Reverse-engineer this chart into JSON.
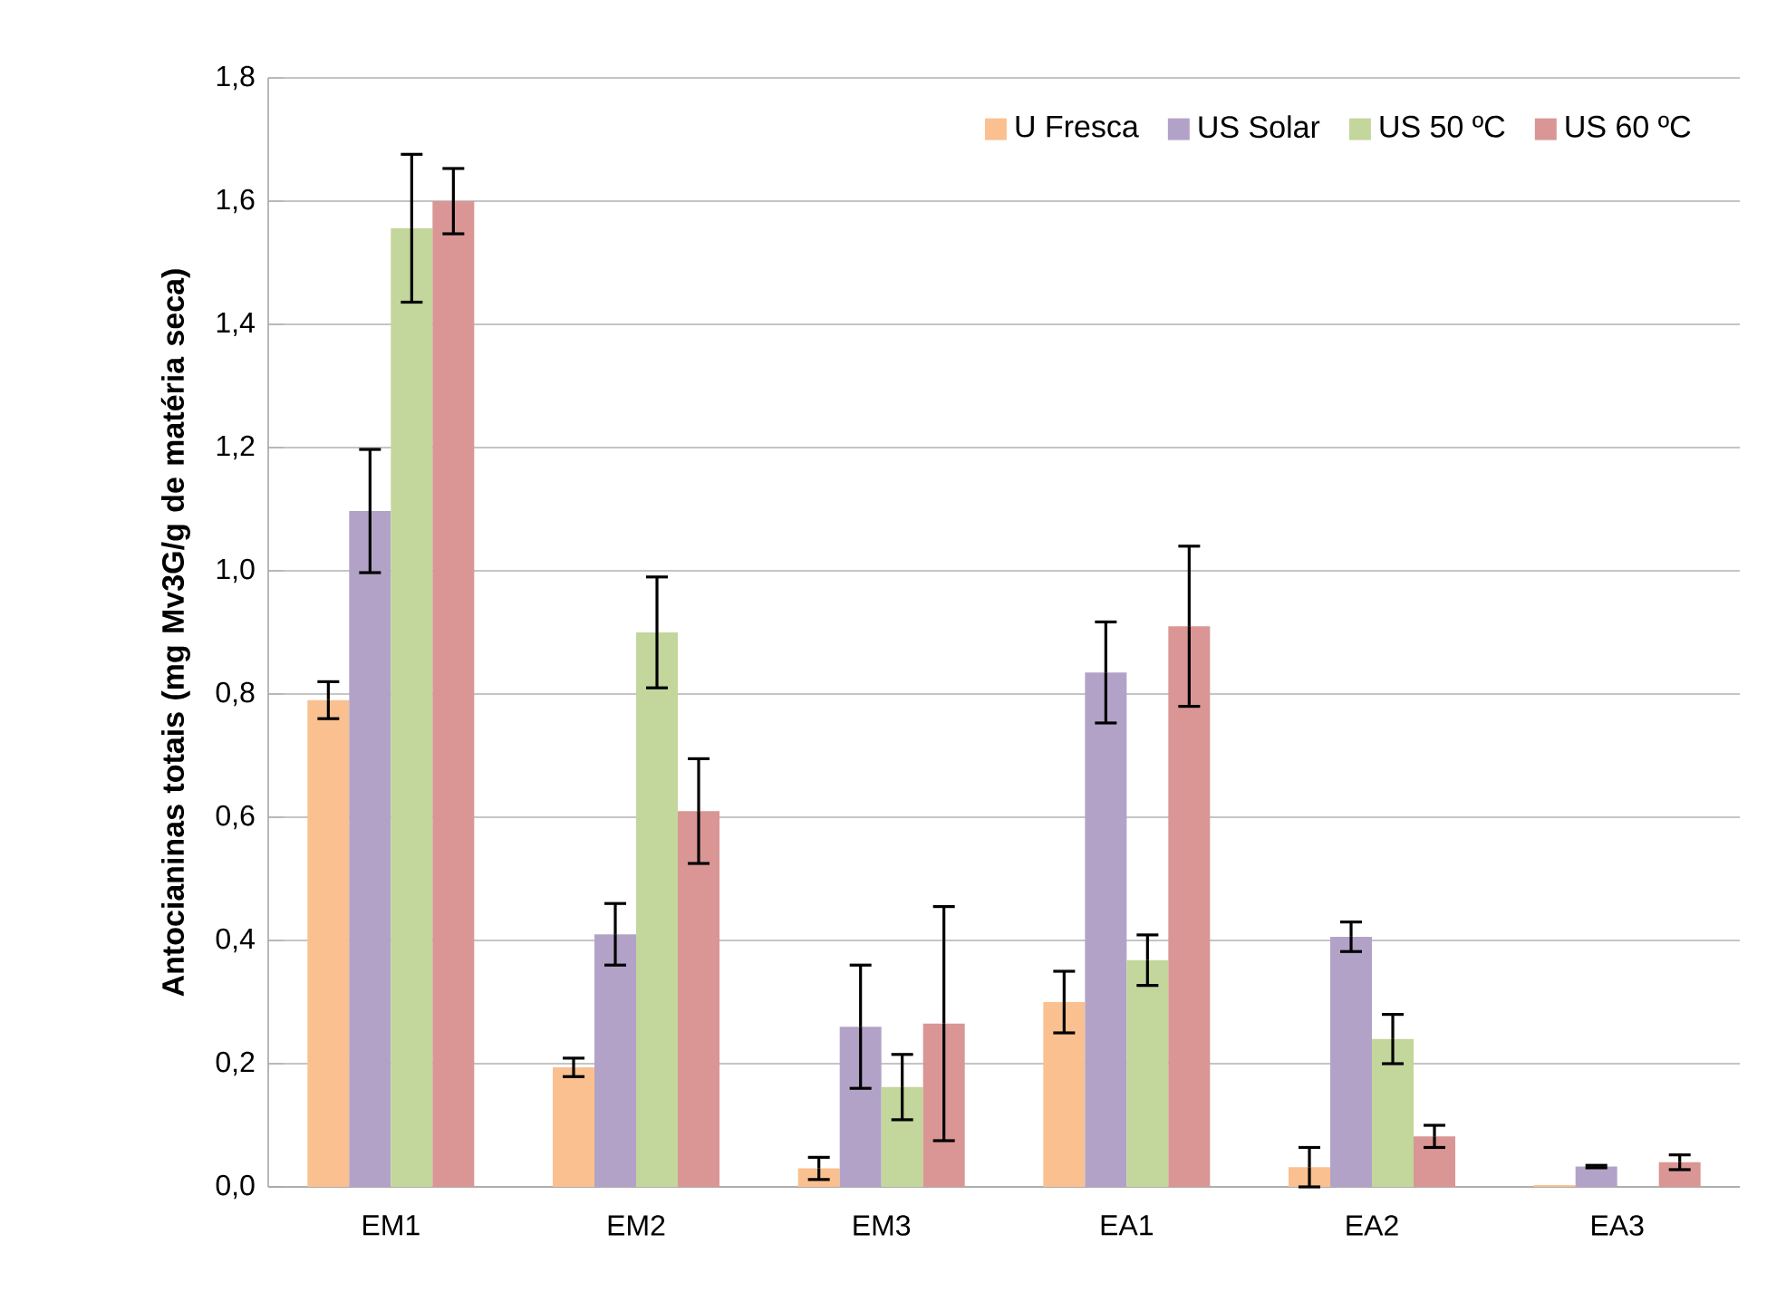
{
  "chart_data": {
    "type": "bar",
    "ylabel": "Antocianinas  totais (mg Mv3G/g de matéria seca)",
    "categories": [
      "EM1",
      "EM2",
      "EM3",
      "EA1",
      "EA2",
      "EA3"
    ],
    "series": [
      {
        "name": "U Fresca",
        "color": "#fac090",
        "values": [
          0.79,
          0.194,
          0.03,
          0.3,
          0.032,
          0.003
        ],
        "errors": [
          0.03,
          0.015,
          0.018,
          0.05,
          0.032,
          null
        ]
      },
      {
        "name": "US Solar",
        "color": "#b3a2c7",
        "values": [
          1.097,
          0.41,
          0.26,
          0.835,
          0.406,
          0.033
        ],
        "errors": [
          0.1,
          0.05,
          0.1,
          0.082,
          0.024,
          0.002
        ]
      },
      {
        "name": "US 50 ºC",
        "color": "#c3d69b",
        "values": [
          1.556,
          0.9,
          0.162,
          0.368,
          0.24,
          null
        ],
        "errors": [
          0.12,
          0.09,
          0.053,
          0.041,
          0.04,
          null
        ]
      },
      {
        "name": "US 60 ºC",
        "color": "#d99694",
        "values": [
          1.6,
          0.61,
          0.265,
          0.91,
          0.082,
          0.04
        ],
        "errors": [
          0.053,
          0.085,
          0.19,
          0.13,
          0.018,
          0.012
        ]
      }
    ],
    "ylim": [
      0,
      1.8
    ],
    "yticks": [
      {
        "value": 0,
        "label": "0,0"
      },
      {
        "value": 0.2,
        "label": "0,2"
      },
      {
        "value": 0.4,
        "label": "0,4"
      },
      {
        "value": 0.6,
        "label": "0,6"
      },
      {
        "value": 0.8,
        "label": "0,8"
      },
      {
        "value": 1.0,
        "label": "1,0"
      },
      {
        "value": 1.2,
        "label": "1,2"
      },
      {
        "value": 1.4,
        "label": "1,4"
      },
      {
        "value": 1.6,
        "label": "1,6"
      },
      {
        "value": 1.8,
        "label": "1,8"
      }
    ],
    "grid": "y",
    "legend": "top right"
  }
}
